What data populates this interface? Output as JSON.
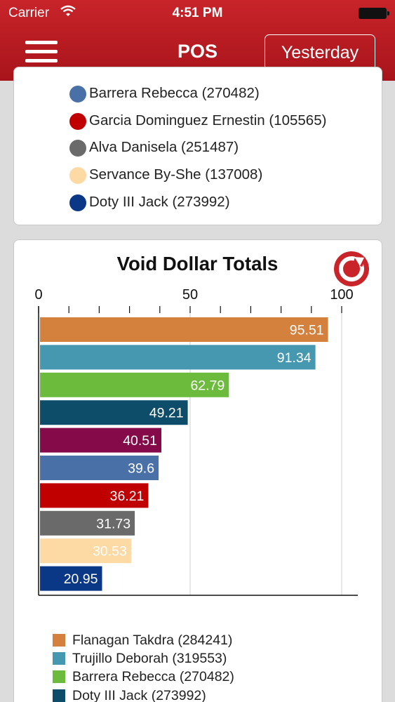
{
  "status_bar": {
    "carrier": "Carrier",
    "time": "4:51 PM"
  },
  "header": {
    "title": "POS",
    "period_button": "Yesterday"
  },
  "top_legend": [
    {
      "label": "Barrera Rebecca (270482)",
      "color": "#4a70a8"
    },
    {
      "label": "Garcia Dominguez Ernestin (105565)",
      "color": "#c00000"
    },
    {
      "label": "Alva Danisela (251487)",
      "color": "#6a6a6a"
    },
    {
      "label": "Servance By-She (137008)",
      "color": "#fdd9a4"
    },
    {
      "label": "Doty III Jack (273992)",
      "color": "#0b3886"
    }
  ],
  "chart_data": {
    "type": "bar",
    "orientation": "horizontal",
    "title": "Void Dollar Totals",
    "xlim": [
      0,
      100
    ],
    "ticks": [
      0,
      50,
      100
    ],
    "categories": [
      "Flanagan Takdra (284241)",
      "Trujillo Deborah (319553)",
      "Barrera Rebecca (270482)",
      "Doty III Jack (273992)",
      "",
      "Barrera Rebecca (270482)",
      "Garcia Dominguez Ernestin (105565)",
      "Alva Danisela (251487)",
      "Servance By-She (137008)",
      "Doty III Jack (273992)"
    ],
    "values": [
      95.51,
      91.34,
      62.79,
      49.21,
      40.51,
      39.6,
      36.21,
      31.73,
      30.53,
      20.95
    ],
    "value_labels": [
      "95.51",
      "91.34",
      "62.79",
      "49.21",
      "40.51",
      "39.6",
      "36.21",
      "31.73",
      "30.53",
      "20.95"
    ],
    "colors": [
      "#d4813e",
      "#4698b0",
      "#6cbb3c",
      "#0e4d6a",
      "#850a4a",
      "#4a70a8",
      "#c00000",
      "#6a6a6a",
      "#fdd9a4",
      "#0b3886"
    ],
    "legend_placement": "bottom",
    "grid": true
  },
  "bottom_legend": [
    {
      "label": "Flanagan Takdra (284241)",
      "color": "#d4813e"
    },
    {
      "label": "Trujillo Deborah (319553)",
      "color": "#4698b0"
    },
    {
      "label": "Barrera Rebecca (270482)",
      "color": "#6cbb3c"
    },
    {
      "label": "Doty III Jack (273992)",
      "color": "#0e4d6a"
    }
  ]
}
